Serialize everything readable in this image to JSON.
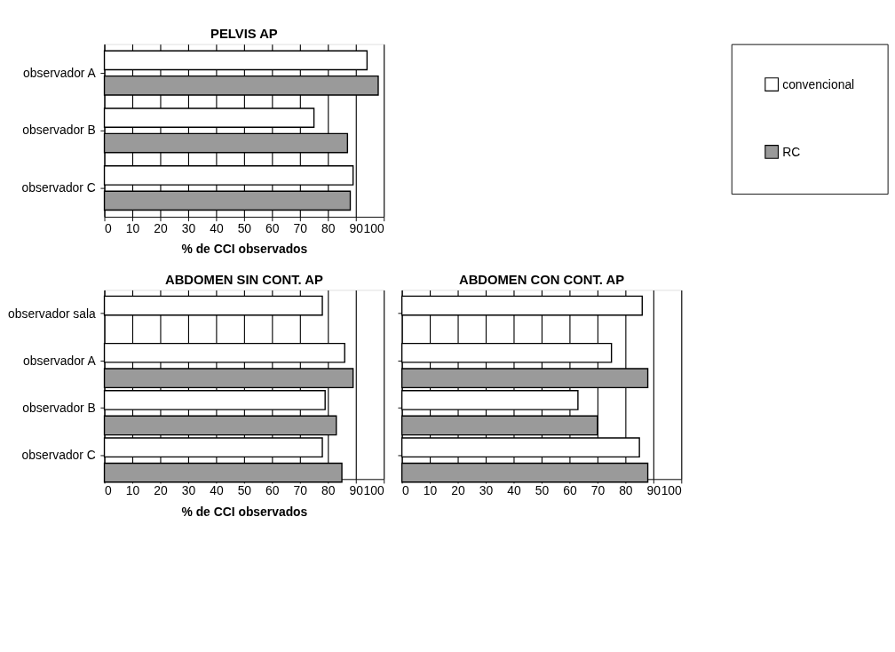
{
  "chart_data": [
    {
      "type": "bar",
      "orientation": "horizontal",
      "title": "PELVIS AP",
      "xlabel": "% de CCI observados",
      "categories": [
        "observador A",
        "observador B",
        "observador C"
      ],
      "series": [
        {
          "name": "convencional",
          "color": "#ffffff",
          "values": [
            94,
            75,
            89
          ]
        },
        {
          "name": "RC",
          "color": "#9a9a9a",
          "values": [
            98,
            87,
            88
          ]
        }
      ],
      "xlim": [
        0,
        100
      ],
      "xticks": [
        0,
        10,
        20,
        30,
        40,
        50,
        60,
        70,
        80,
        90,
        100
      ],
      "grid": "x",
      "legend": "right"
    },
    {
      "type": "bar",
      "orientation": "horizontal",
      "title": "ABDOMEN SIN CONT. AP",
      "xlabel": "% de CCI observados",
      "categories": [
        "observador sala",
        "observador A",
        "observador B",
        "observador C"
      ],
      "series": [
        {
          "name": "convencional",
          "color": "#ffffff",
          "values": [
            78,
            86,
            79,
            78
          ]
        },
        {
          "name": "RC",
          "color": "#9a9a9a",
          "values": [
            null,
            89,
            83,
            85
          ]
        }
      ],
      "xlim": [
        0,
        100
      ],
      "xticks": [
        0,
        10,
        20,
        30,
        40,
        50,
        60,
        70,
        80,
        90,
        100
      ],
      "grid": "x"
    },
    {
      "type": "bar",
      "orientation": "horizontal",
      "title": "ABDOMEN CON CONT. AP",
      "categories": [
        "observador sala",
        "observador A",
        "observador B",
        "observador C"
      ],
      "series": [
        {
          "name": "convencional",
          "color": "#ffffff",
          "values": [
            86,
            75,
            63,
            85
          ]
        },
        {
          "name": "RC",
          "color": "#9a9a9a",
          "values": [
            null,
            88,
            70,
            88
          ]
        }
      ],
      "xlim": [
        0,
        100
      ],
      "xticks": [
        0,
        10,
        20,
        30,
        40,
        50,
        60,
        70,
        80,
        90,
        100
      ],
      "grid": "x",
      "tick_labels": "x"
    }
  ]
}
